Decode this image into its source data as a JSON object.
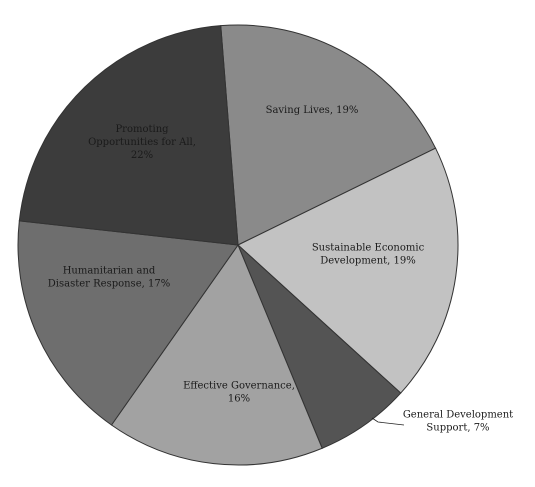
{
  "chart_data": {
    "type": "pie",
    "slices": [
      {
        "label": "Saving Lives",
        "pct_text": "19%",
        "value": 19,
        "color": "#8a8a8a",
        "label_color": "#ffffff"
      },
      {
        "label": "Sustainable Economic Development",
        "pct_text": "19%",
        "value": 19,
        "color": "#c2c2c2",
        "label_color": "#1a1a1a"
      },
      {
        "label": "General Development Support",
        "pct_text": "7%",
        "value": 7,
        "color": "#545454",
        "label_color": "#1a1a1a"
      },
      {
        "label": "Effective Governance",
        "pct_text": "16%",
        "value": 16,
        "color": "#a2a2a2",
        "label_color": "#1a1a1a"
      },
      {
        "label": "Humanitarian and Disaster Response",
        "pct_text": "17%",
        "value": 17,
        "color": "#6e6e6e",
        "label_color": "#ffffff"
      },
      {
        "label": "Promoting Opportunities for All",
        "pct_text": "22%",
        "value": 22,
        "color": "#3c3c3c",
        "label_color": "#ffffff"
      }
    ],
    "label_lines": [
      [
        "Saving Lives, 19%"
      ],
      [
        "Sustainable Economic",
        "Development, 19%"
      ],
      [
        "General Development",
        "Support, 7%"
      ],
      [
        "Effective Governance,",
        "16%"
      ],
      [
        "Humanitarian and",
        "Disaster Response, 17%"
      ],
      [
        "Promoting",
        "Opportunities for All,",
        "22%"
      ]
    ],
    "start_angle_deg": -4.5,
    "direction": "clockwise"
  }
}
